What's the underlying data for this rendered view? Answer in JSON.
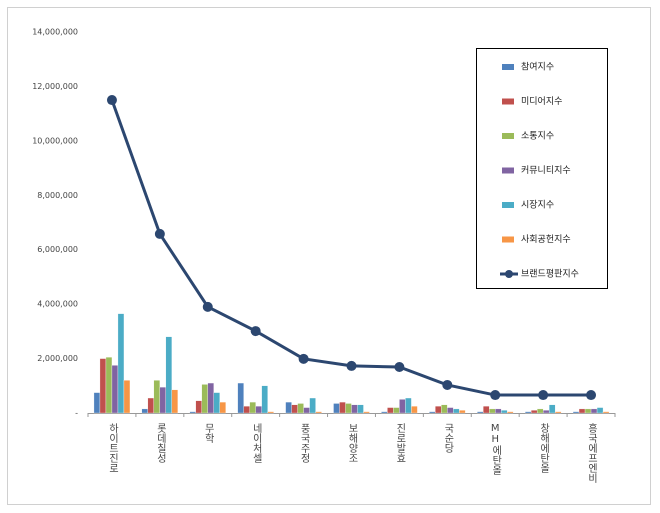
{
  "chart_data": {
    "type": "bar",
    "categories": [
      "하이트진로",
      "롯데칠성",
      "무학",
      "네이처셀",
      "풍국주정",
      "보해양조",
      "진로발효",
      "국순당",
      "MH에탄올",
      "창해에탄올",
      "흥국에프엔비"
    ],
    "series": [
      {
        "name": "참여지수",
        "color": "#4f81bd",
        "values": [
          750000,
          150000,
          50000,
          1100000,
          400000,
          350000,
          50000,
          50000,
          50000,
          50000,
          50000
        ]
      },
      {
        "name": "미디어지수",
        "color": "#c0504d",
        "values": [
          2000000,
          550000,
          450000,
          250000,
          300000,
          400000,
          200000,
          250000,
          250000,
          100000,
          150000
        ]
      },
      {
        "name": "소통지수",
        "color": "#9bbb59",
        "values": [
          2050000,
          1200000,
          1050000,
          400000,
          350000,
          350000,
          200000,
          300000,
          150000,
          150000,
          150000
        ]
      },
      {
        "name": "커뮤니티지수",
        "color": "#8064a2",
        "values": [
          1750000,
          950000,
          1100000,
          250000,
          200000,
          300000,
          500000,
          200000,
          150000,
          100000,
          150000
        ]
      },
      {
        "name": "시장지수",
        "color": "#4bacc6",
        "values": [
          3650000,
          2800000,
          750000,
          1000000,
          550000,
          300000,
          550000,
          150000,
          100000,
          300000,
          200000
        ]
      },
      {
        "name": "사회공헌지수",
        "color": "#f79646",
        "values": [
          1200000,
          850000,
          400000,
          50000,
          50000,
          50000,
          250000,
          100000,
          50000,
          50000,
          50000
        ]
      },
      {
        "name": "브랜드평판지수",
        "color": "#2c4770",
        "type": "line",
        "values": [
          11500000,
          6580000,
          3900000,
          3010000,
          1990000,
          1730000,
          1690000,
          1030000,
          660000,
          660000,
          660000
        ]
      }
    ],
    "ylim": [
      0,
      14000000
    ],
    "yticks": [
      {
        "value": 0,
        "label": "-"
      },
      {
        "value": 2000000,
        "label": "2,000,000"
      },
      {
        "value": 4000000,
        "label": "4,000,000"
      },
      {
        "value": 6000000,
        "label": "6,000,000"
      },
      {
        "value": 8000000,
        "label": "8,000,000"
      },
      {
        "value": 10000000,
        "label": "10,000,000"
      },
      {
        "value": 12000000,
        "label": "12,000,000"
      },
      {
        "value": 14000000,
        "label": "14,000,000"
      }
    ],
    "legend": "right"
  }
}
